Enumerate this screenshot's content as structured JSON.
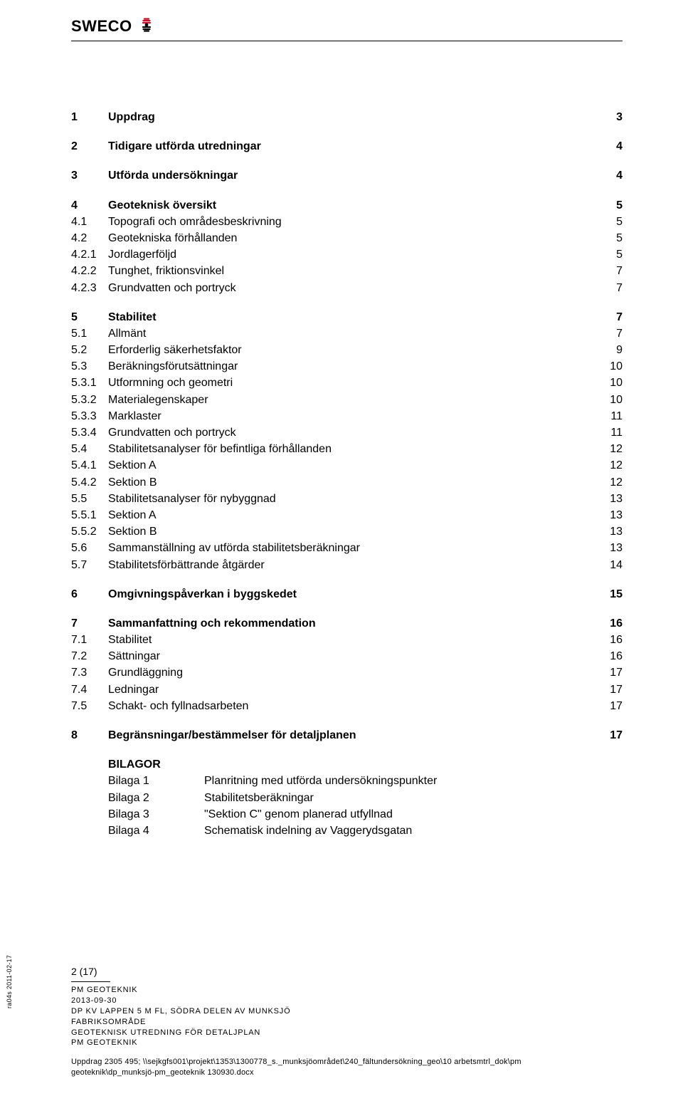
{
  "header": {
    "logo_text": "SWECO",
    "logo_colors": {
      "top": "#c8102e",
      "bottom": "#000000"
    }
  },
  "toc": [
    {
      "level": 1,
      "num": "1",
      "title": "Uppdrag",
      "page": "3"
    },
    {
      "level": 1,
      "num": "2",
      "title": "Tidigare utförda utredningar",
      "page": "4"
    },
    {
      "level": 1,
      "num": "3",
      "title": "Utförda undersökningar",
      "page": "4"
    },
    {
      "level": 1,
      "num": "4",
      "title": "Geoteknisk översikt",
      "page": "5"
    },
    {
      "level": 2,
      "num": "4.1",
      "title": "Topografi och områdesbeskrivning",
      "page": "5"
    },
    {
      "level": 2,
      "num": "4.2",
      "title": "Geotekniska förhållanden",
      "page": "5"
    },
    {
      "level": 3,
      "num": "4.2.1",
      "title": "Jordlagerföljd",
      "page": "5"
    },
    {
      "level": 3,
      "num": "4.2.2",
      "title": "Tunghet, friktionsvinkel",
      "page": "7"
    },
    {
      "level": 3,
      "num": "4.2.3",
      "title": "Grundvatten och portryck",
      "page": "7"
    },
    {
      "level": 1,
      "num": "5",
      "title": "Stabilitet",
      "page": "7"
    },
    {
      "level": 2,
      "num": "5.1",
      "title": "Allmänt",
      "page": "7"
    },
    {
      "level": 2,
      "num": "5.2",
      "title": "Erforderlig säkerhetsfaktor",
      "page": "9"
    },
    {
      "level": 2,
      "num": "5.3",
      "title": "Beräkningsförutsättningar",
      "page": "10"
    },
    {
      "level": 3,
      "num": "5.3.1",
      "title": "Utformning och geometri",
      "page": "10"
    },
    {
      "level": 3,
      "num": "5.3.2",
      "title": "Materialegenskaper",
      "page": "10"
    },
    {
      "level": 3,
      "num": "5.3.3",
      "title": "Marklaster",
      "page": "11"
    },
    {
      "level": 3,
      "num": "5.3.4",
      "title": "Grundvatten och portryck",
      "page": "11"
    },
    {
      "level": 2,
      "num": "5.4",
      "title": "Stabilitetsanalyser för befintliga förhållanden",
      "page": "12"
    },
    {
      "level": 3,
      "num": "5.4.1",
      "title": "Sektion A",
      "page": "12"
    },
    {
      "level": 3,
      "num": "5.4.2",
      "title": "Sektion B",
      "page": "12"
    },
    {
      "level": 2,
      "num": "5.5",
      "title": "Stabilitetsanalyser för nybyggnad",
      "page": "13"
    },
    {
      "level": 3,
      "num": "5.5.1",
      "title": "Sektion A",
      "page": "13"
    },
    {
      "level": 3,
      "num": "5.5.2",
      "title": "Sektion B",
      "page": "13"
    },
    {
      "level": 2,
      "num": "5.6",
      "title": "Sammanställning av utförda stabilitetsberäkningar",
      "page": "13"
    },
    {
      "level": 2,
      "num": "5.7",
      "title": "Stabilitetsförbättrande åtgärder",
      "page": "14"
    },
    {
      "level": 1,
      "num": "6",
      "title": "Omgivningspåverkan i byggskedet",
      "page": "15"
    },
    {
      "level": 1,
      "num": "7",
      "title": "Sammanfattning och rekommendation",
      "page": "16"
    },
    {
      "level": 2,
      "num": "7.1",
      "title": "Stabilitet",
      "page": "16"
    },
    {
      "level": 2,
      "num": "7.2",
      "title": "Sättningar",
      "page": "16"
    },
    {
      "level": 2,
      "num": "7.3",
      "title": "Grundläggning",
      "page": "17"
    },
    {
      "level": 2,
      "num": "7.4",
      "title": "Ledningar",
      "page": "17"
    },
    {
      "level": 2,
      "num": "7.5",
      "title": "Schakt- och fyllnadsarbeten",
      "page": "17"
    },
    {
      "level": 1,
      "num": "8",
      "title": "Begränsningar/bestämmelser för detaljplanen",
      "page": "17"
    }
  ],
  "bilagor": {
    "title": "BILAGOR",
    "items": [
      {
        "key": "Bilaga 1",
        "desc": "Planritning med utförda undersökningspunkter"
      },
      {
        "key": "Bilaga 2",
        "desc": "Stabilitetsberäkningar"
      },
      {
        "key": "Bilaga 3",
        "desc": "\"Sektion C\" genom planerad utfyllnad"
      },
      {
        "key": "Bilaga 4",
        "desc": "Schematisk indelning av Vaggerydsgatan"
      }
    ]
  },
  "footer": {
    "page_counter": "2 (17)",
    "lines": [
      "PM GEOTEKNIK",
      "2013-09-30",
      "DP KV LAPPEN 5 M FL, SÖDRA DELEN AV MUNKSJÖ",
      "FABRIKSOMRÅDE",
      "GEOTEKNISK UTREDNING FÖR DETALJPLAN",
      "PM GEOTEKNIK"
    ],
    "path_line1": "Uppdrag 2305 495;  \\\\sejkgfs001\\projekt\\1353\\1300778_s._munksjöområdet\\240_fältundersökning_geo\\10 arbetsmtrl_dok\\pm",
    "path_line2": "geoteknik\\dp_munksjö-pm_geoteknik 130930.docx"
  },
  "side_label": "ra04s 2011-02-17"
}
